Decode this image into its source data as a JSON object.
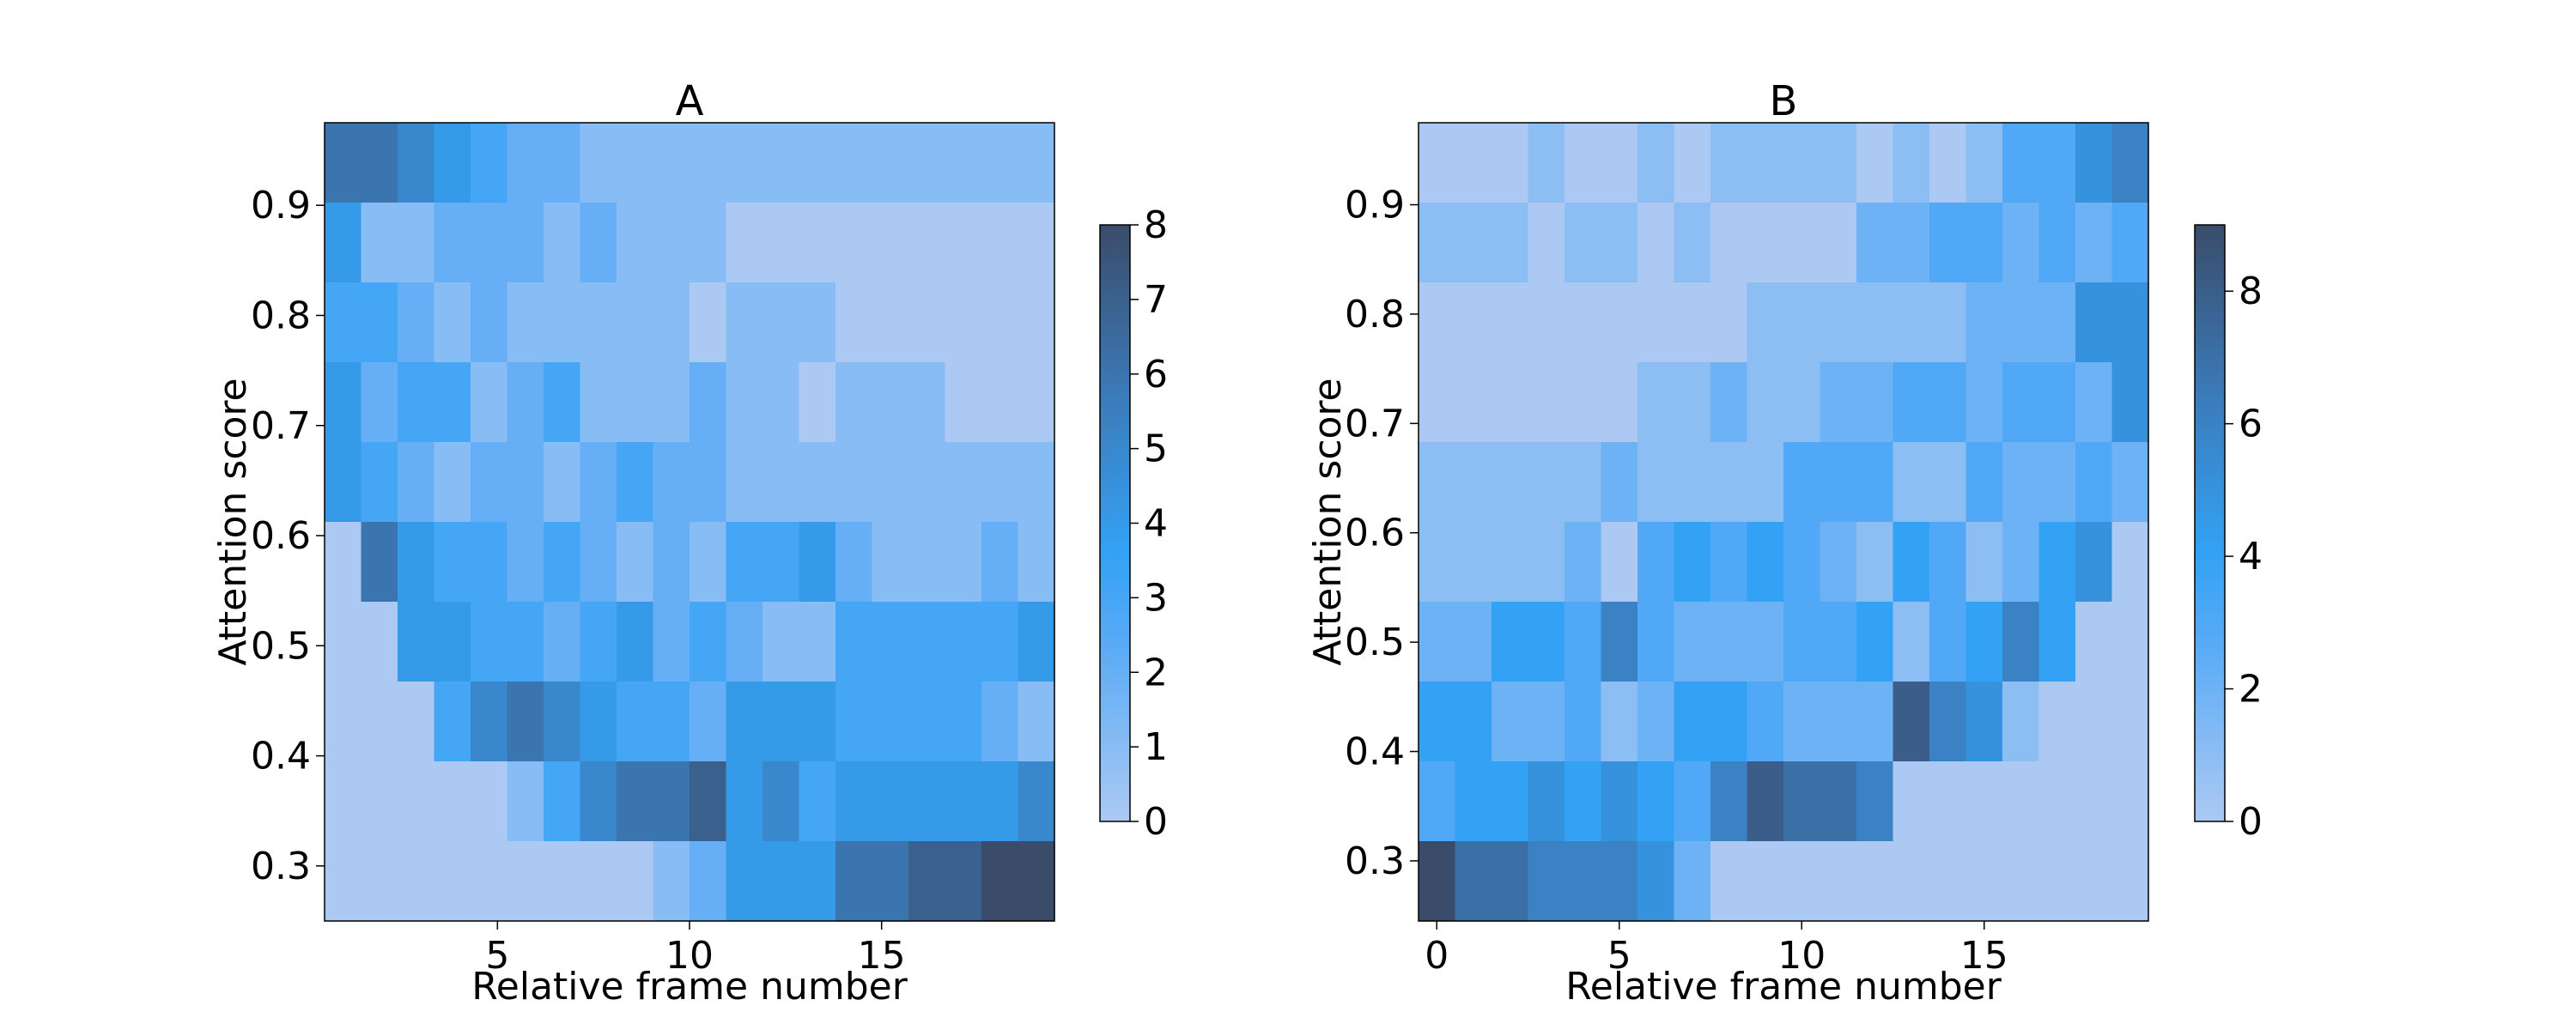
{
  "chart_data": [
    {
      "type": "heatmap",
      "title": "A",
      "xlabel": "Relative frame number",
      "ylabel": "Attention score",
      "x_range": [
        0.5,
        19.5
      ],
      "y_range": [
        0.25,
        0.975
      ],
      "x_bin_edges": [
        0.5,
        1.45,
        2.4,
        3.35,
        4.3,
        5.25,
        6.2,
        7.15,
        8.1,
        9.05,
        10.0,
        10.95,
        11.9,
        12.85,
        13.8,
        14.75,
        15.7,
        16.65,
        17.6,
        18.55,
        19.5
      ],
      "y_bin_edges": [
        0.25,
        0.3225,
        0.395,
        0.4675,
        0.54,
        0.6125,
        0.685,
        0.7575,
        0.83,
        0.9025,
        0.975
      ],
      "x_ticks": [
        5,
        10,
        15
      ],
      "y_ticks": [
        0.3,
        0.4,
        0.5,
        0.6,
        0.7,
        0.8,
        0.9
      ],
      "colorbar": {
        "min": 0,
        "max": 8,
        "ticks": [
          0,
          1,
          2,
          3,
          4,
          5,
          6,
          7,
          8
        ]
      },
      "counts_rows_from_top": [
        [
          6,
          6,
          5,
          4,
          3,
          2,
          2,
          1,
          1,
          1,
          1,
          1,
          1,
          1,
          1,
          1,
          1,
          1,
          1,
          1
        ],
        [
          4,
          1,
          1,
          2,
          2,
          2,
          1,
          2,
          1,
          1,
          1,
          0,
          0,
          0,
          0,
          0,
          0,
          0,
          0,
          0
        ],
        [
          3,
          3,
          2,
          1,
          2,
          1,
          1,
          1,
          1,
          1,
          0,
          1,
          1,
          1,
          0,
          0,
          0,
          0,
          0,
          0
        ],
        [
          4,
          2,
          3,
          3,
          1,
          2,
          3,
          1,
          1,
          1,
          2,
          1,
          1,
          0,
          1,
          1,
          1,
          0,
          0,
          0
        ],
        [
          4,
          3,
          2,
          1,
          2,
          2,
          1,
          2,
          3,
          2,
          2,
          1,
          1,
          1,
          1,
          1,
          1,
          1,
          1,
          1
        ],
        [
          0,
          6,
          4,
          3,
          3,
          2,
          3,
          2,
          1,
          2,
          1,
          3,
          3,
          4,
          2,
          1,
          1,
          1,
          2,
          1
        ],
        [
          0,
          0,
          4,
          4,
          3,
          3,
          2,
          3,
          4,
          2,
          3,
          2,
          1,
          1,
          3,
          3,
          3,
          3,
          3,
          4
        ],
        [
          0,
          0,
          0,
          3,
          5,
          6,
          5,
          4,
          3,
          3,
          2,
          4,
          4,
          4,
          3,
          3,
          3,
          3,
          2,
          1
        ],
        [
          0,
          0,
          0,
          0,
          0,
          1,
          3,
          5,
          6,
          6,
          7,
          4,
          5,
          3,
          4,
          4,
          4,
          4,
          4,
          5
        ],
        [
          0,
          0,
          0,
          0,
          0,
          0,
          0,
          0,
          0,
          1,
          2,
          4,
          4,
          4,
          6,
          6,
          7,
          7,
          8,
          8
        ]
      ]
    },
    {
      "type": "heatmap",
      "title": "B",
      "xlabel": "Relative frame number",
      "ylabel": "Attention score",
      "x_range": [
        -0.5,
        19.5
      ],
      "y_range": [
        0.245,
        0.975
      ],
      "x_bin_edges": [
        -0.5,
        0.5,
        1.5,
        2.5,
        3.5,
        4.5,
        5.5,
        6.5,
        7.5,
        8.5,
        9.5,
        10.5,
        11.5,
        12.5,
        13.5,
        14.5,
        15.5,
        16.5,
        17.5,
        18.5,
        19.5
      ],
      "y_bin_edges": [
        0.245,
        0.318,
        0.391,
        0.464,
        0.537,
        0.61,
        0.683,
        0.756,
        0.829,
        0.902,
        0.975
      ],
      "x_ticks": [
        0,
        5,
        10,
        15
      ],
      "y_ticks": [
        0.3,
        0.4,
        0.5,
        0.6,
        0.7,
        0.8,
        0.9
      ],
      "colorbar": {
        "min": 0,
        "max": 9,
        "ticks": [
          0,
          2,
          4,
          6,
          8
        ]
      },
      "counts_rows_from_top": [
        [
          0,
          0,
          0,
          1,
          0,
          0,
          1,
          0,
          1,
          1,
          1,
          1,
          0,
          1,
          0,
          1,
          3,
          3,
          5,
          6
        ],
        [
          1,
          1,
          1,
          0,
          1,
          1,
          0,
          1,
          0,
          0,
          0,
          0,
          2,
          2,
          3,
          3,
          2,
          3,
          2,
          3
        ],
        [
          0,
          0,
          0,
          0,
          0,
          0,
          0,
          0,
          0,
          1,
          1,
          1,
          1,
          1,
          1,
          2,
          2,
          2,
          5,
          5
        ],
        [
          0,
          0,
          0,
          0,
          0,
          0,
          1,
          1,
          2,
          1,
          1,
          2,
          2,
          3,
          3,
          2,
          3,
          3,
          2,
          5
        ],
        [
          1,
          1,
          1,
          1,
          1,
          2,
          1,
          1,
          1,
          1,
          3,
          3,
          3,
          1,
          1,
          3,
          2,
          2,
          3,
          2
        ],
        [
          1,
          1,
          1,
          1,
          2,
          0,
          3,
          4,
          3,
          4,
          3,
          2,
          1,
          4,
          3,
          1,
          2,
          4,
          5,
          0
        ],
        [
          2,
          2,
          4,
          4,
          3,
          6,
          3,
          2,
          2,
          2,
          3,
          3,
          4,
          1,
          3,
          4,
          6,
          4,
          0,
          0
        ],
        [
          4,
          4,
          2,
          2,
          3,
          1,
          2,
          4,
          4,
          3,
          2,
          2,
          2,
          8,
          6,
          5,
          1,
          0,
          0,
          0
        ],
        [
          3,
          4,
          4,
          5,
          4,
          5,
          4,
          3,
          6,
          8,
          7,
          7,
          6,
          0,
          0,
          0,
          0,
          0,
          0,
          0
        ],
        [
          9,
          7,
          7,
          6,
          6,
          6,
          5,
          2,
          0,
          0,
          0,
          0,
          0,
          0,
          0,
          0,
          0,
          0,
          0,
          0
        ]
      ]
    }
  ]
}
